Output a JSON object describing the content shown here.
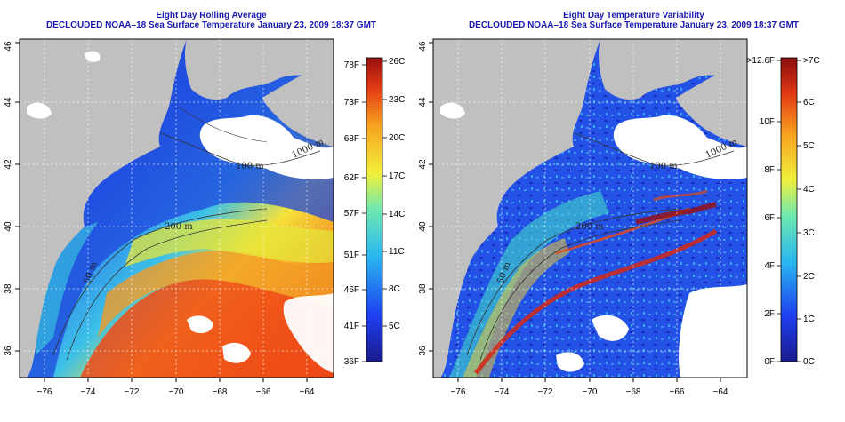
{
  "maps": [
    {
      "title_line1": "Eight Day Rolling Average",
      "title_line2": "DECLOUDED NOAA–18 Sea Surface Temperature January 23, 2009 18:37 GMT",
      "x_ticks": [
        "−76",
        "−74",
        "−72",
        "−70",
        "−68",
        "−66",
        "−64"
      ],
      "y_ticks": [
        "36",
        "38",
        "40",
        "42",
        "44",
        "46"
      ],
      "contour_labels": [
        "100 m",
        "200 m",
        "1000 m",
        "50 m"
      ],
      "colorbar": {
        "left_labels": [
          "78F",
          "73F",
          "68F",
          "62F",
          "57F",
          "51F",
          "46F",
          "41F",
          "36F"
        ],
        "right_labels": [
          "26C",
          "23C",
          "20C",
          "17C",
          "14C",
          "11C",
          "8C",
          "5C"
        ]
      }
    },
    {
      "title_line1": "Eight Day Temperature Variability",
      "title_line2": "DECLOUDED NOAA–18 Sea Surface Temperature January 23, 2009 18:37 GMT",
      "x_ticks": [
        "−76",
        "−74",
        "−72",
        "−70",
        "−68",
        "−66",
        "−64"
      ],
      "y_ticks": [
        "36",
        "38",
        "40",
        "42",
        "44",
        "46"
      ],
      "contour_labels": [
        "100 m",
        "200 m",
        "1000 m",
        "50 m"
      ],
      "colorbar": {
        "left_labels": [
          ">12.6F",
          "10F",
          "8F",
          "6F",
          "4F",
          "2F",
          "0F"
        ],
        "right_labels": [
          ">7C",
          "6C",
          "5C",
          "4C",
          "3C",
          "2C",
          "1C",
          "0C"
        ]
      }
    }
  ],
  "colors": {
    "land": "#c0c0c0",
    "cloud": "#ffffff",
    "title": "#1a1ab0"
  }
}
